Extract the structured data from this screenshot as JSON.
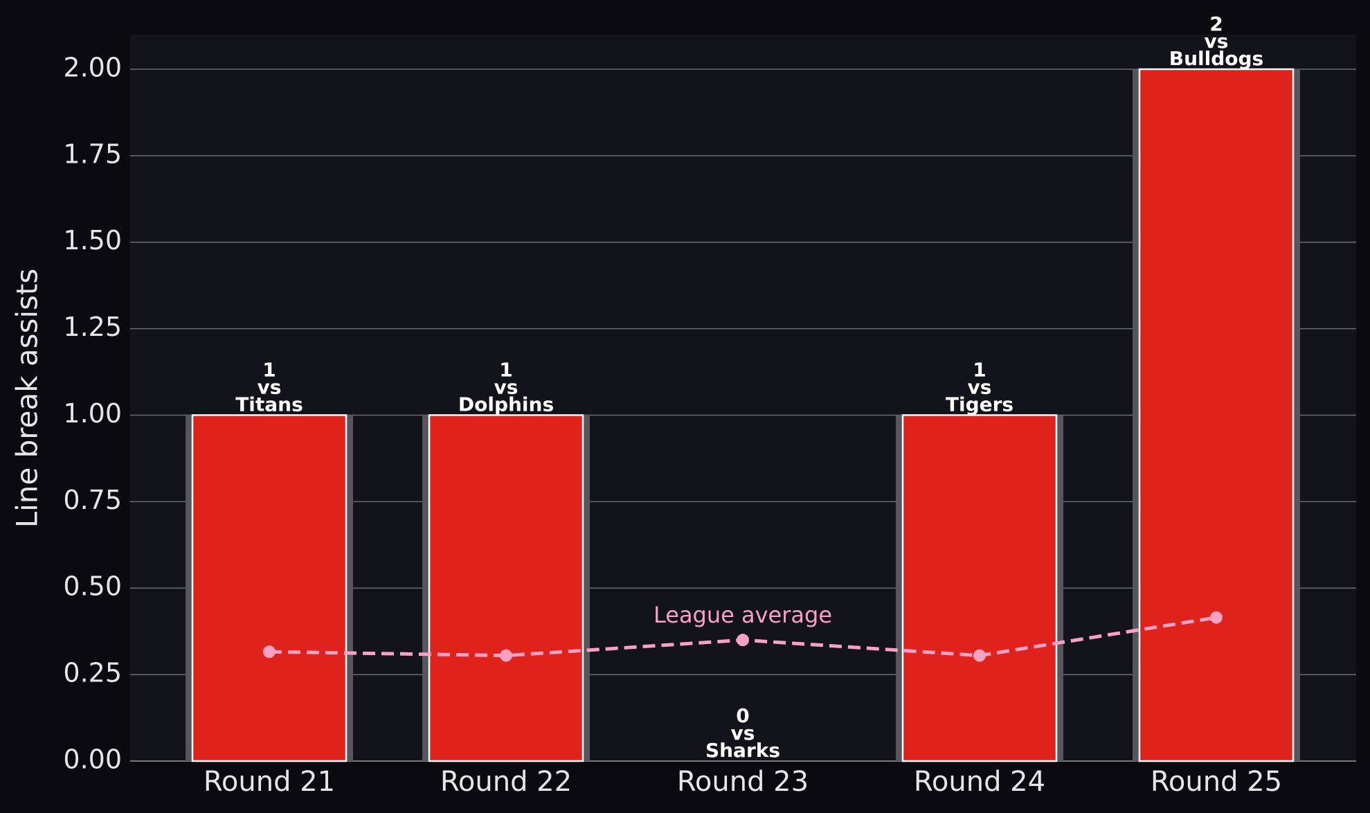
{
  "chart_data": {
    "type": "bar",
    "ylabel": "Line break assists",
    "categories": [
      "Round 21",
      "Round 22",
      "Round 23",
      "Round 24",
      "Round 25"
    ],
    "values": [
      1,
      1,
      0,
      1,
      2
    ],
    "opponent_prefix": "vs",
    "opponents": [
      "Titans",
      "Dolphins",
      "Sharks",
      "Tigers",
      "Bulldogs"
    ],
    "color": "#e0221d",
    "league_average": {
      "name": "League average",
      "color": "#f7a1c4",
      "values": [
        0.316,
        0.305,
        0.35,
        0.305,
        0.415
      ]
    },
    "ylim": [
      0,
      2.1
    ],
    "yticks": [
      {
        "value": 0,
        "label": "0.00"
      },
      {
        "value": 0.25,
        "label": "0.25"
      },
      {
        "value": 0.5,
        "label": "0.50"
      },
      {
        "value": 0.75,
        "label": "0.75"
      },
      {
        "value": 1,
        "label": "1.00"
      },
      {
        "value": 1.25,
        "label": "1.25"
      },
      {
        "value": 1.5,
        "label": "1.50"
      },
      {
        "value": 1.75,
        "label": "1.75"
      },
      {
        "value": 2,
        "label": "2.00"
      }
    ],
    "grid": true
  }
}
